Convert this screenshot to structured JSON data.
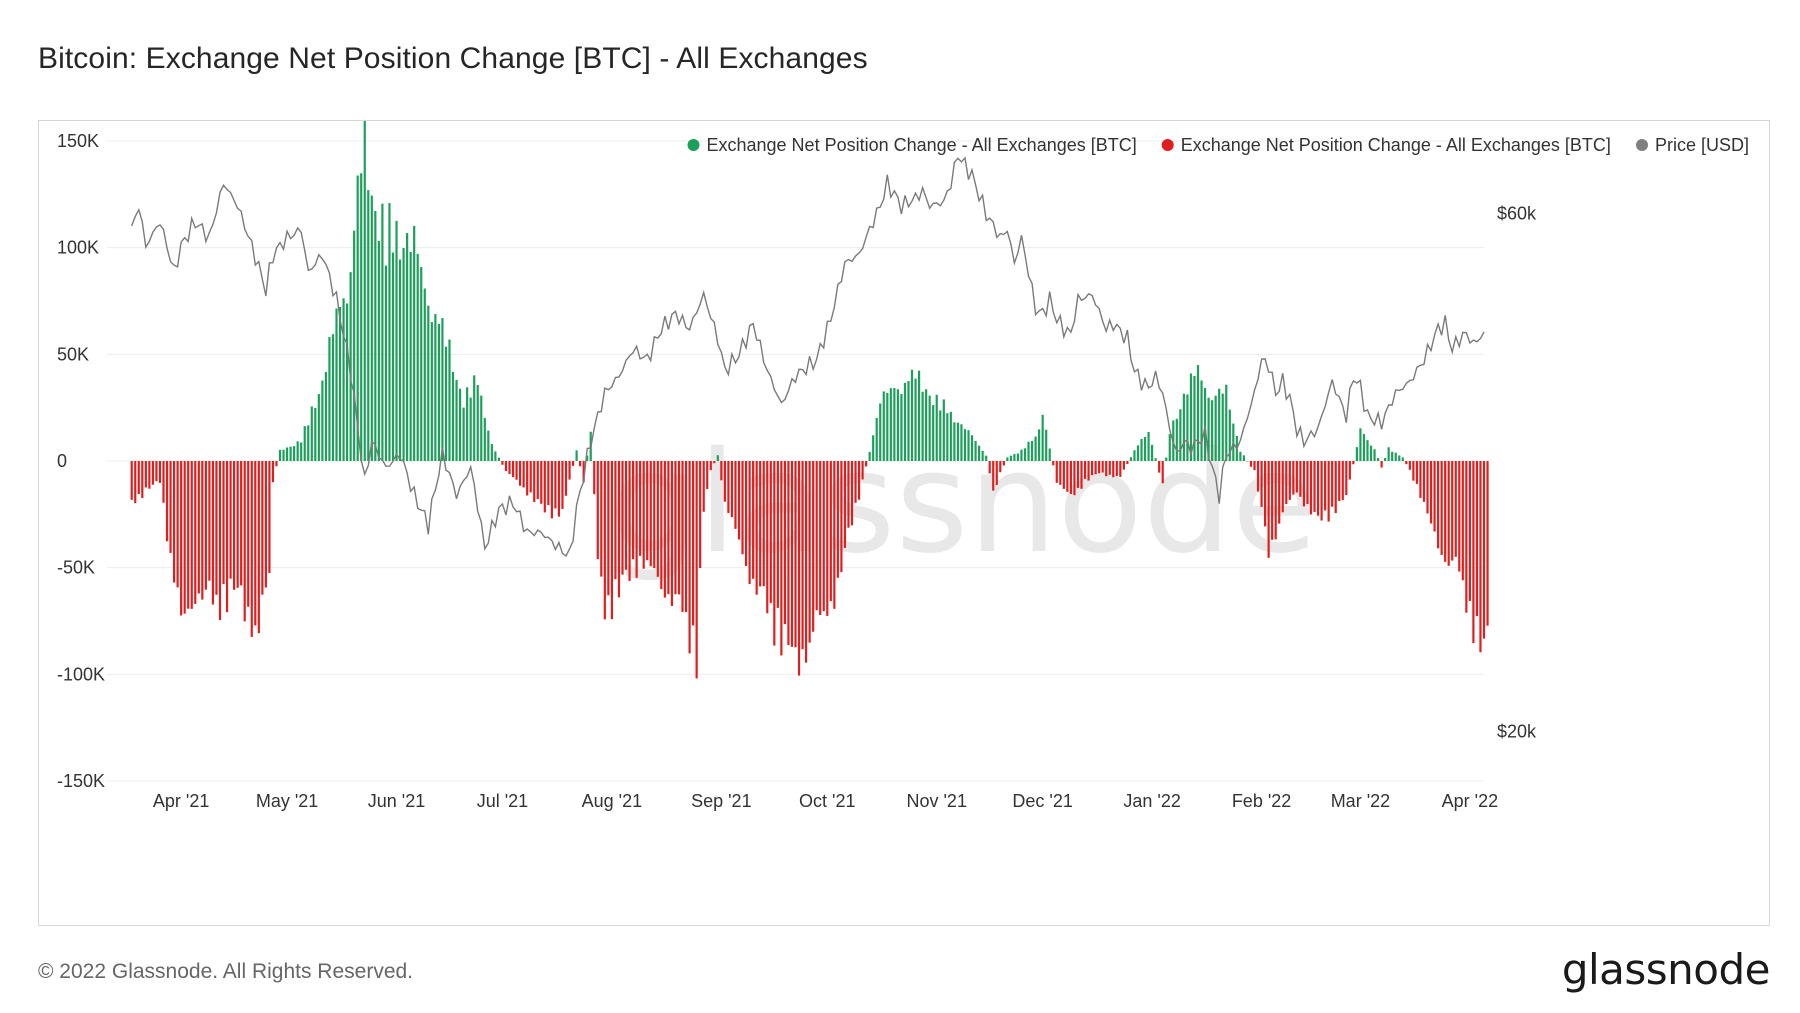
{
  "title": "Bitcoin: Exchange Net Position Change [BTC] - All Exchanges",
  "footer": {
    "copyright": "© 2022 Glassnode. All Rights Reserved.",
    "logo": "glassnode"
  },
  "watermark": "glassnode",
  "colors": {
    "positive": "#1aa05a",
    "negative": "#e01e1e",
    "price": "#7a7a7a",
    "grid": "#ececec"
  },
  "chart_data": {
    "type": "bar",
    "title": "Bitcoin: Exchange Net Position Change [BTC] - All Exchanges",
    "legend": [
      {
        "name": "Exchange Net Position Change - All Exchanges [BTC]",
        "color": "#1aa05a"
      },
      {
        "name": "Exchange Net Position Change - All Exchanges [BTC]",
        "color": "#e01e1e"
      },
      {
        "name": "Price [USD]",
        "color": "#808080"
      }
    ],
    "legend_position": "top-right",
    "y_left": {
      "ticks": [
        150000,
        100000,
        50000,
        0,
        -50000,
        -100000,
        -150000
      ],
      "labels": [
        "150K",
        "100K",
        "50K",
        "0",
        "-50K",
        "-100K",
        "-150K"
      ],
      "range": [
        -150000,
        150000
      ]
    },
    "y_right": {
      "ticks": [
        60000,
        20000
      ],
      "labels": [
        "$60k",
        "$20k"
      ],
      "range": [
        18000,
        70000
      ],
      "scale": "log"
    },
    "x_ticks": [
      "Apr '21",
      "May '21",
      "Jun '21",
      "Jul '21",
      "Aug '21",
      "Sep '21",
      "Oct '21",
      "Nov '21",
      "Dec '21",
      "Jan '22",
      "Feb '22",
      "Mar '22",
      "Apr '22"
    ],
    "x_tick_days": [
      14,
      44,
      75,
      105,
      136,
      167,
      197,
      228,
      258,
      289,
      320,
      348,
      379
    ],
    "day_range": [
      -7,
      383
    ],
    "netflow_knots": [
      [
        0,
        -20000
      ],
      [
        8,
        -10000
      ],
      [
        10,
        -35000
      ],
      [
        12,
        -58000
      ],
      [
        14,
        -80000
      ],
      [
        18,
        -65000
      ],
      [
        24,
        -70000
      ],
      [
        30,
        -65000
      ],
      [
        36,
        -85000
      ],
      [
        39,
        -55000
      ],
      [
        40,
        -10000
      ],
      [
        42,
        5000
      ],
      [
        48,
        10000
      ],
      [
        54,
        40000
      ],
      [
        58,
        70000
      ],
      [
        62,
        95000
      ],
      [
        64,
        130000
      ],
      [
        66,
        155000
      ],
      [
        68,
        135000
      ],
      [
        72,
        110000
      ],
      [
        76,
        115000
      ],
      [
        80,
        105000
      ],
      [
        84,
        80000
      ],
      [
        90,
        55000
      ],
      [
        94,
        30000
      ],
      [
        98,
        40000
      ],
      [
        102,
        8000
      ],
      [
        106,
        -5000
      ],
      [
        112,
        -15000
      ],
      [
        117,
        -25000
      ],
      [
        122,
        -25000
      ],
      [
        126,
        5000
      ],
      [
        128,
        -10000
      ],
      [
        130,
        15000
      ],
      [
        132,
        -50000
      ],
      [
        134,
        -72000
      ],
      [
        138,
        -65000
      ],
      [
        144,
        -48000
      ],
      [
        150,
        -60000
      ],
      [
        156,
        -75000
      ],
      [
        160,
        -95000
      ],
      [
        162,
        -25000
      ],
      [
        164,
        -5000
      ],
      [
        166,
        3000
      ],
      [
        168,
        -20000
      ],
      [
        172,
        -40000
      ],
      [
        176,
        -60000
      ],
      [
        182,
        -80000
      ],
      [
        188,
        -100000
      ],
      [
        194,
        -82000
      ],
      [
        200,
        -62000
      ],
      [
        204,
        -30000
      ],
      [
        207,
        -10000
      ],
      [
        209,
        5000
      ],
      [
        212,
        30000
      ],
      [
        218,
        38000
      ],
      [
        222,
        42000
      ],
      [
        228,
        30000
      ],
      [
        234,
        20000
      ],
      [
        238,
        12000
      ],
      [
        242,
        3000
      ],
      [
        244,
        -15000
      ],
      [
        246,
        -6000
      ],
      [
        248,
        2000
      ],
      [
        252,
        5000
      ],
      [
        256,
        12000
      ],
      [
        258,
        24000
      ],
      [
        260,
        6000
      ],
      [
        262,
        -10000
      ],
      [
        266,
        -18000
      ],
      [
        270,
        -10000
      ],
      [
        274,
        -6000
      ],
      [
        280,
        -8000
      ],
      [
        284,
        5000
      ],
      [
        288,
        15000
      ],
      [
        292,
        -12000
      ],
      [
        294,
        15000
      ],
      [
        298,
        32000
      ],
      [
        302,
        45000
      ],
      [
        306,
        30000
      ],
      [
        310,
        35000
      ],
      [
        314,
        5000
      ],
      [
        318,
        -5000
      ],
      [
        322,
        -45000
      ],
      [
        326,
        -25000
      ],
      [
        330,
        -15000
      ],
      [
        336,
        -30000
      ],
      [
        340,
        -25000
      ],
      [
        344,
        -18000
      ],
      [
        348,
        15000
      ],
      [
        352,
        6000
      ],
      [
        354,
        -3000
      ],
      [
        356,
        6000
      ],
      [
        360,
        2000
      ],
      [
        364,
        -12000
      ],
      [
        368,
        -32000
      ],
      [
        372,
        -48000
      ],
      [
        376,
        -55000
      ],
      [
        380,
        -80000
      ],
      [
        382,
        -95000
      ],
      [
        384,
        -92000
      ]
    ],
    "price_knots": [
      [
        0,
        58000
      ],
      [
        2,
        61000
      ],
      [
        4,
        56000
      ],
      [
        8,
        59000
      ],
      [
        12,
        53000
      ],
      [
        14,
        56000
      ],
      [
        18,
        59000
      ],
      [
        22,
        57000
      ],
      [
        26,
        64000
      ],
      [
        30,
        61000
      ],
      [
        34,
        56000
      ],
      [
        38,
        51000
      ],
      [
        40,
        55000
      ],
      [
        44,
        57000
      ],
      [
        48,
        58000
      ],
      [
        50,
        53000
      ],
      [
        54,
        55000
      ],
      [
        58,
        50000
      ],
      [
        62,
        43000
      ],
      [
        64,
        38000
      ],
      [
        66,
        34000
      ],
      [
        68,
        37000
      ],
      [
        72,
        35000
      ],
      [
        76,
        36000
      ],
      [
        80,
        33000
      ],
      [
        84,
        31000
      ],
      [
        88,
        36000
      ],
      [
        92,
        33000
      ],
      [
        96,
        35000
      ],
      [
        100,
        29500
      ],
      [
        104,
        32000
      ],
      [
        108,
        32500
      ],
      [
        112,
        30500
      ],
      [
        116,
        30500
      ],
      [
        120,
        29700
      ],
      [
        124,
        29000
      ],
      [
        126,
        32000
      ],
      [
        128,
        34500
      ],
      [
        130,
        37000
      ],
      [
        134,
        41000
      ],
      [
        138,
        42500
      ],
      [
        142,
        45000
      ],
      [
        146,
        44000
      ],
      [
        150,
        47000
      ],
      [
        154,
        48500
      ],
      [
        158,
        47000
      ],
      [
        162,
        50500
      ],
      [
        166,
        46000
      ],
      [
        168,
        43000
      ],
      [
        172,
        44500
      ],
      [
        176,
        47500
      ],
      [
        180,
        43000
      ],
      [
        184,
        40000
      ],
      [
        188,
        42500
      ],
      [
        190,
        43000
      ],
      [
        194,
        44000
      ],
      [
        198,
        48000
      ],
      [
        202,
        54000
      ],
      [
        206,
        55000
      ],
      [
        208,
        57000
      ],
      [
        212,
        61000
      ],
      [
        214,
        64000
      ],
      [
        218,
        61000
      ],
      [
        222,
        62000
      ],
      [
        224,
        63000
      ],
      [
        226,
        61000
      ],
      [
        230,
        61500
      ],
      [
        232,
        64000
      ],
      [
        234,
        68000
      ],
      [
        238,
        65000
      ],
      [
        242,
        60000
      ],
      [
        246,
        57000
      ],
      [
        248,
        58000
      ],
      [
        250,
        54000
      ],
      [
        252,
        57000
      ],
      [
        256,
        49000
      ],
      [
        258,
        48500
      ],
      [
        260,
        50000
      ],
      [
        262,
        48000
      ],
      [
        264,
        47000
      ],
      [
        266,
        46500
      ],
      [
        268,
        50000
      ],
      [
        272,
        50500
      ],
      [
        276,
        47000
      ],
      [
        278,
        47500
      ],
      [
        282,
        46000
      ],
      [
        284,
        43000
      ],
      [
        286,
        42000
      ],
      [
        288,
        41500
      ],
      [
        290,
        42500
      ],
      [
        292,
        41000
      ],
      [
        294,
        38000
      ],
      [
        296,
        36000
      ],
      [
        298,
        37000
      ],
      [
        300,
        36500
      ],
      [
        304,
        37500
      ],
      [
        306,
        35000
      ],
      [
        308,
        33000
      ],
      [
        310,
        36000
      ],
      [
        314,
        37000
      ],
      [
        318,
        41000
      ],
      [
        320,
        44000
      ],
      [
        322,
        43500
      ],
      [
        324,
        41000
      ],
      [
        326,
        42000
      ],
      [
        328,
        40500
      ],
      [
        330,
        38000
      ],
      [
        332,
        37000
      ],
      [
        334,
        37500
      ],
      [
        336,
        38000
      ],
      [
        340,
        42000
      ],
      [
        344,
        39000
      ],
      [
        346,
        42500
      ],
      [
        348,
        41500
      ],
      [
        350,
        39000
      ],
      [
        354,
        38500
      ],
      [
        358,
        41000
      ],
      [
        362,
        42000
      ],
      [
        366,
        44000
      ],
      [
        370,
        47000
      ],
      [
        372,
        47500
      ],
      [
        374,
        45000
      ],
      [
        376,
        46000
      ],
      [
        378,
        46500
      ],
      [
        380,
        45500
      ],
      [
        383,
        46500
      ]
    ]
  }
}
